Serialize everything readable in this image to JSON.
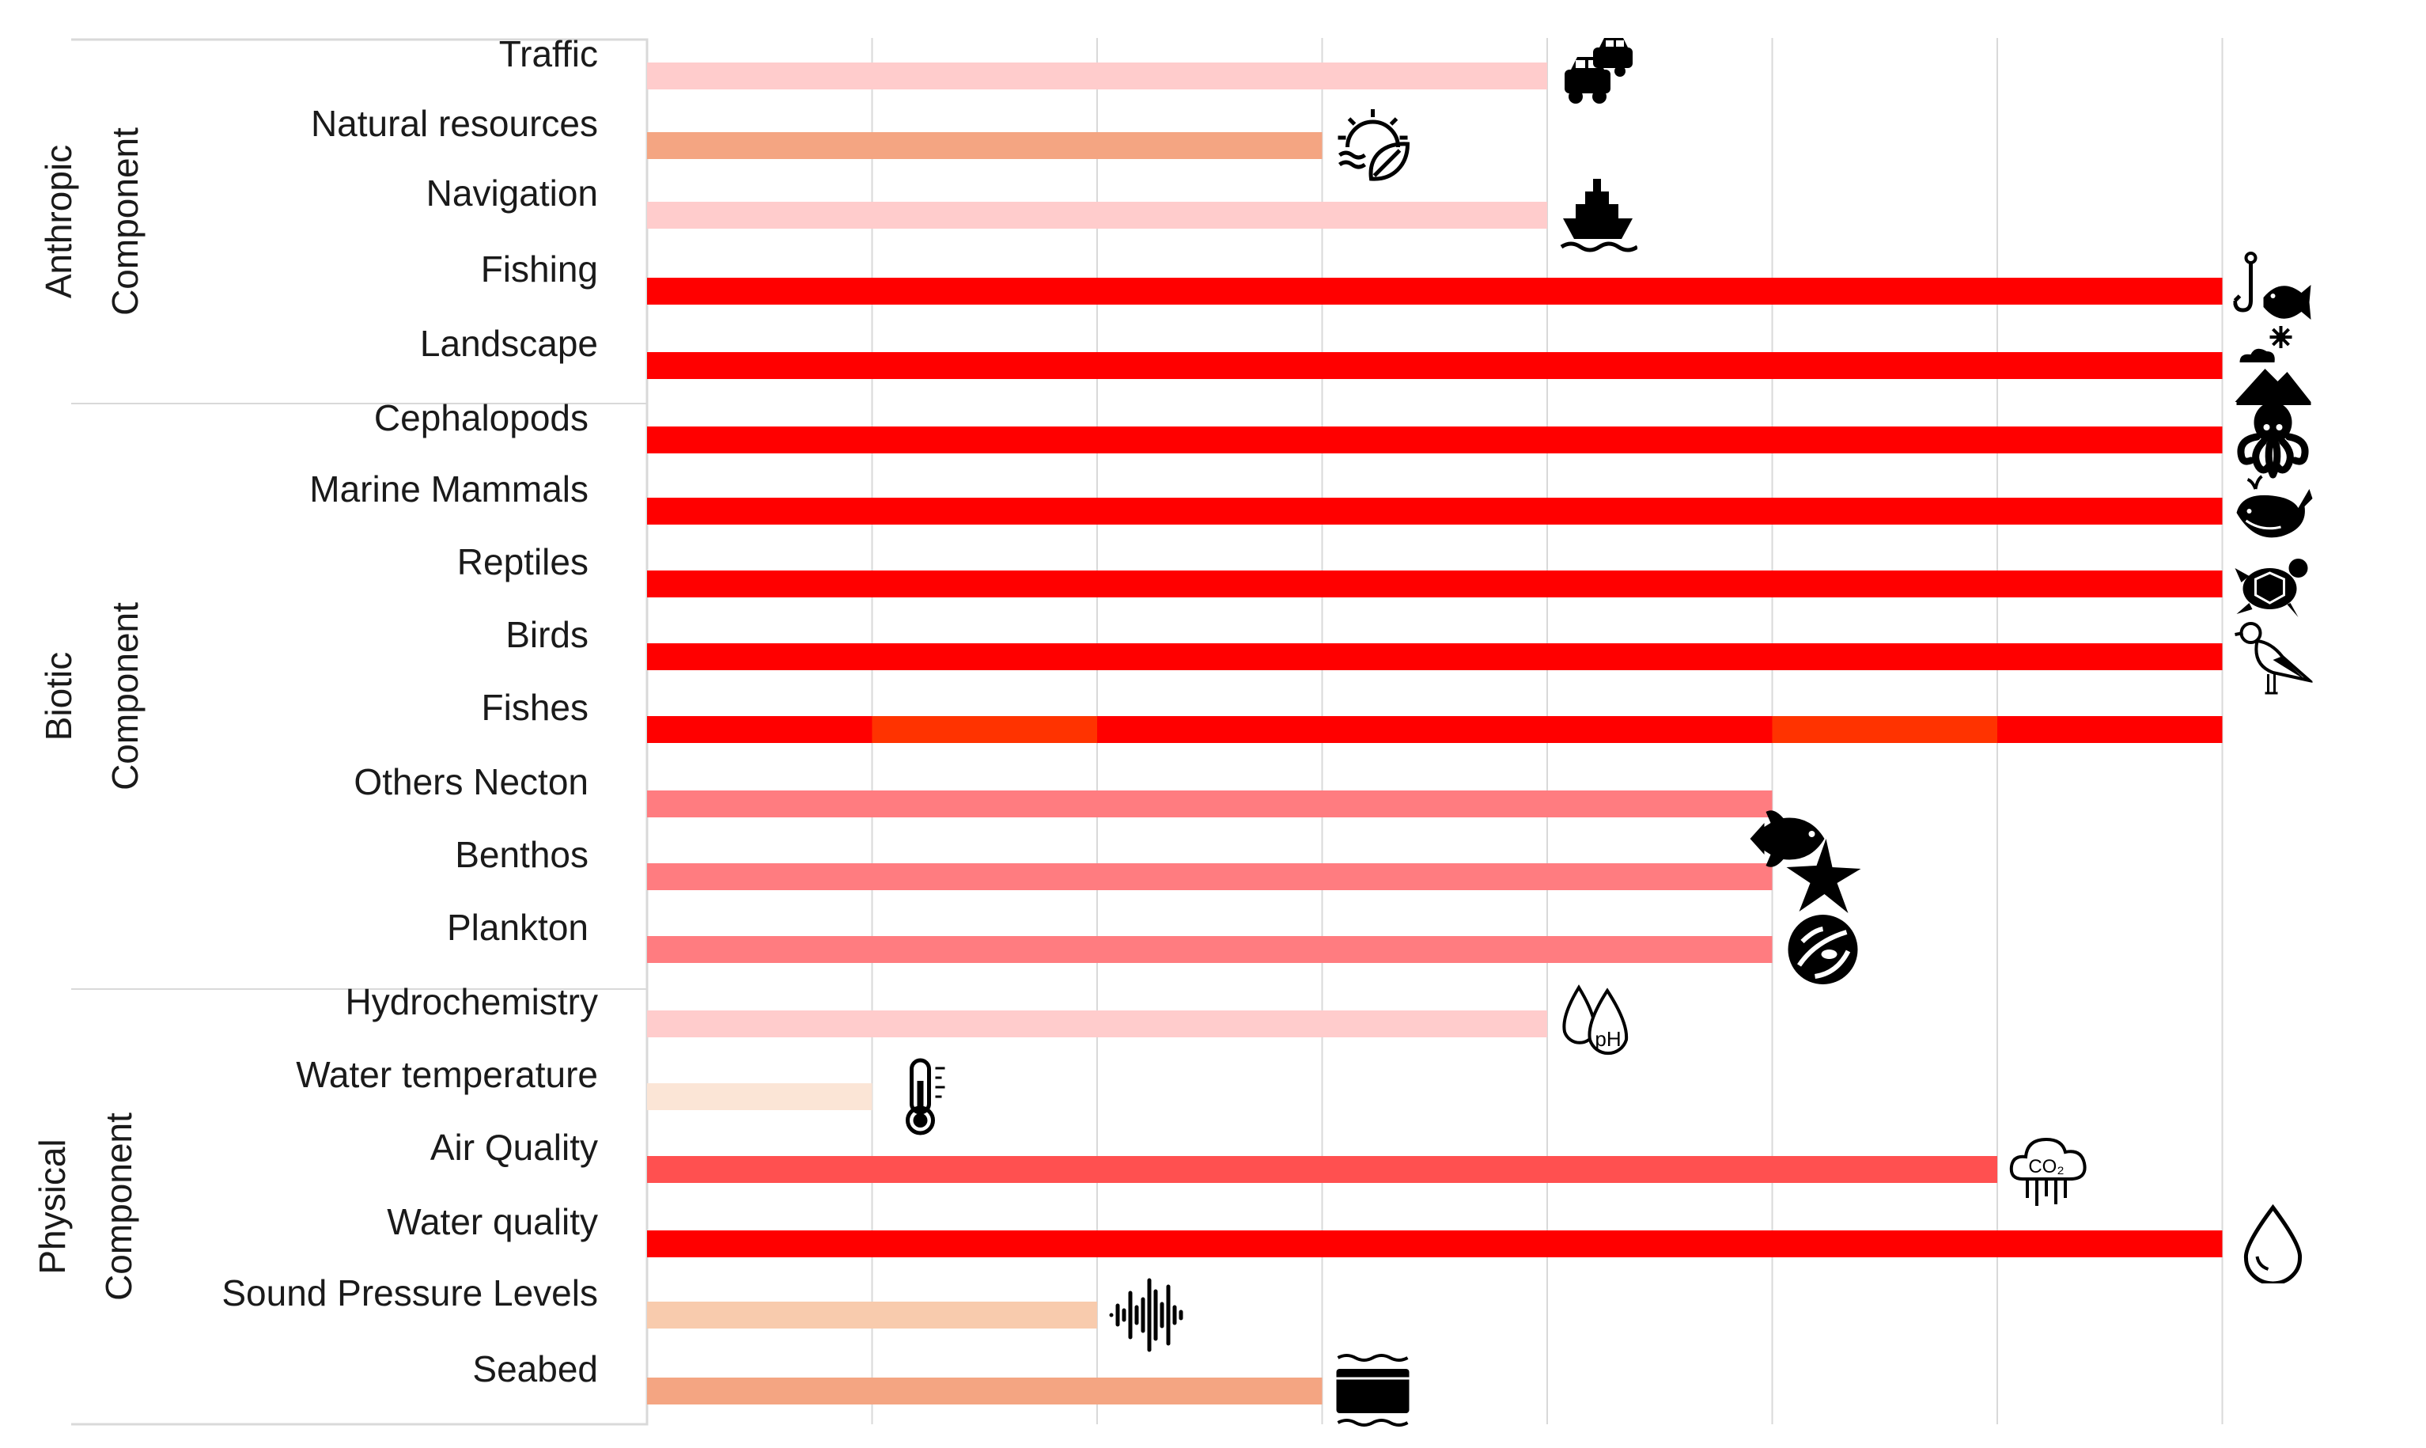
{
  "chart_data": {
    "type": "bar",
    "orientation": "horizontal",
    "grid": true,
    "xlim": [
      0,
      8
    ],
    "groups": [
      {
        "label": "Anthropic Component",
        "categories": [
          "Traffic",
          "Natural resources",
          "Navigation",
          "Fishing",
          "Landscape"
        ]
      },
      {
        "label": "Biotic Component",
        "categories": [
          "Cephalopods",
          "Marine Mammals",
          "Reptiles",
          "Birds",
          "Fishes",
          "Others Necton",
          "Benthos",
          "Plankton"
        ]
      },
      {
        "label": "Physical Component",
        "categories": [
          "Hydrochemistry",
          "Water temperature",
          "Air Quality",
          "Water quality",
          "Sound Pressure Levels",
          "Seabed"
        ]
      }
    ],
    "categories": [
      "Traffic",
      "Natural resources",
      "Navigation",
      "Fishing",
      "Landscape",
      "Cephalopods",
      "Marine Mammals",
      "Reptiles",
      "Birds",
      "Fishes",
      "Others Necton",
      "Benthos",
      "Plankton",
      "Hydrochemistry",
      "Water temperature",
      "Air Quality",
      "Water quality",
      "Sound Pressure Levels",
      "Seabed"
    ],
    "values": [
      4,
      3,
      4,
      7,
      7,
      7,
      7,
      7,
      7,
      7,
      5,
      5,
      5,
      4,
      1,
      6,
      7,
      2,
      3
    ],
    "colors": [
      "#FFCCCC",
      "#F4A582",
      "#FFCCCC",
      "#FF0000",
      "#FF0000",
      "#FF0000",
      "#FF0000",
      "#FF0000",
      "#FF0000",
      "#FF0000",
      "#FF7C80",
      "#FF7C80",
      "#FF7C80",
      "#FFCCCC",
      "#FBE5D6",
      "#FF5050",
      "#FF0000",
      "#F8CBAD",
      "#F4A582"
    ],
    "highlight_segments": [
      {
        "category": "Fishes",
        "from": 1,
        "to": 2,
        "color": "#FF3300"
      },
      {
        "category": "Fishes",
        "from": 5,
        "to": 6,
        "color": "#FF3300"
      }
    ],
    "icons": [
      "cars-icon",
      "sun-leaf-icon",
      "ship-icon",
      "fishing-hook-icon",
      "landscape-icon",
      "octopus-icon",
      "whale-icon",
      "turtle-icon",
      "seagull-icon",
      "fish-icon",
      "starfish-icon",
      "plankton-icon",
      "ph-drops-icon",
      "thermometer-icon",
      "co2-cloud-icon",
      "water-drop-icon",
      "sound-wave-icon",
      "seabed-icon"
    ],
    "icon_rows": [
      "Traffic",
      "Natural resources",
      "Navigation",
      "Fishing",
      "Landscape",
      "Cephalopods",
      "Marine Mammals",
      "Reptiles",
      "Birds",
      "Others Necton",
      "Benthos",
      "Plankton",
      "Hydrochemistry",
      "Water temperature",
      "Air Quality",
      "Water quality",
      "Sound Pressure Levels",
      "Seabed"
    ]
  }
}
